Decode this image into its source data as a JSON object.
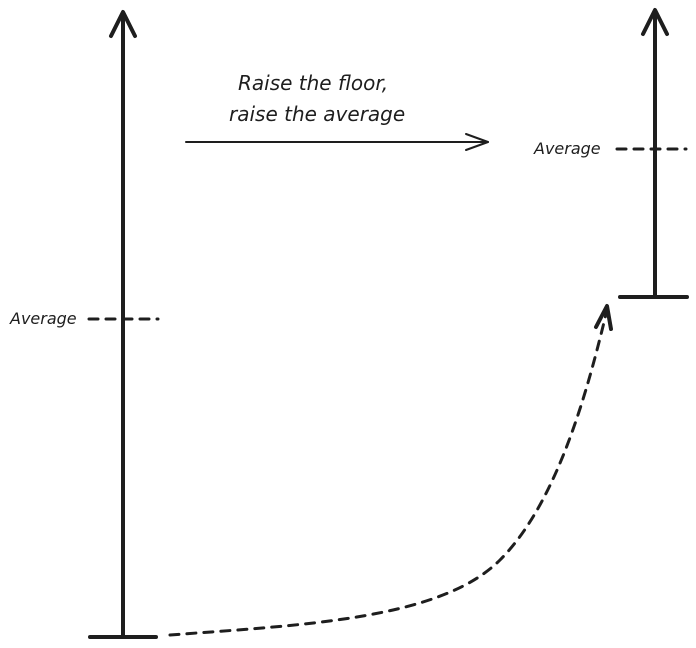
{
  "caption": {
    "line1": "Raise the floor,",
    "line2": "raise the average"
  },
  "left_average_label": "Average",
  "right_average_label": "Average"
}
